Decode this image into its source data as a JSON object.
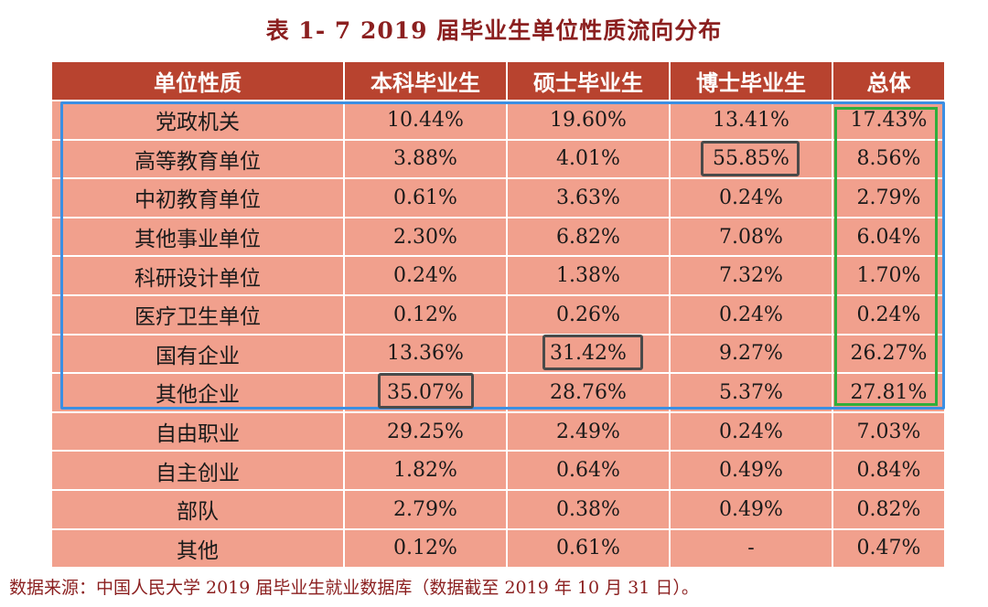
{
  "title": "表 1- 7    2019 届毕业生单位性质流向分布",
  "headers": [
    "单位性质",
    "本科毕业生",
    "硕士毕业生",
    "博士毕业生",
    "总体"
  ],
  "rows": [
    [
      "党政机关",
      "10.44%",
      "19.60%",
      "13.41%",
      "17.43%"
    ],
    [
      "高等教育单位",
      "3.88%",
      "4.01%",
      "55.85%",
      "8.56%"
    ],
    [
      "中初教育单位",
      "0.61%",
      "3.63%",
      "0.24%",
      "2.79%"
    ],
    [
      "其他事业单位",
      "2.30%",
      "6.82%",
      "7.08%",
      "6.04%"
    ],
    [
      "科研设计单位",
      "0.24%",
      "1.38%",
      "7.32%",
      "1.70%"
    ],
    [
      "医疗卫生单位",
      "0.12%",
      "0.26%",
      "0.24%",
      "0.24%"
    ],
    [
      "国有企业",
      "13.36%",
      "31.42%",
      "9.27%",
      "26.27%"
    ],
    [
      "其他企业",
      "35.07%",
      "28.76%",
      "5.37%",
      "27.81%"
    ],
    [
      "自由职业",
      "29.25%",
      "2.49%",
      "0.24%",
      "7.03%"
    ],
    [
      "自主创业",
      "1.82%",
      "0.64%",
      "0.49%",
      "0.84%"
    ],
    [
      "部队",
      "2.79%",
      "0.38%",
      "0.49%",
      "0.82%"
    ],
    [
      "其他",
      "0.12%",
      "0.61%",
      "-",
      "0.47%"
    ]
  ],
  "annotation_colors": {
    "blue_group": "#3b8fe3",
    "green_column": "#2fae3c",
    "max_highlight": "#4a4a4a"
  },
  "footer": "数据来源：中国人民大学 2019 届毕业生就业数据库（数据截至 2019 年 10 月 31 日）。"
}
